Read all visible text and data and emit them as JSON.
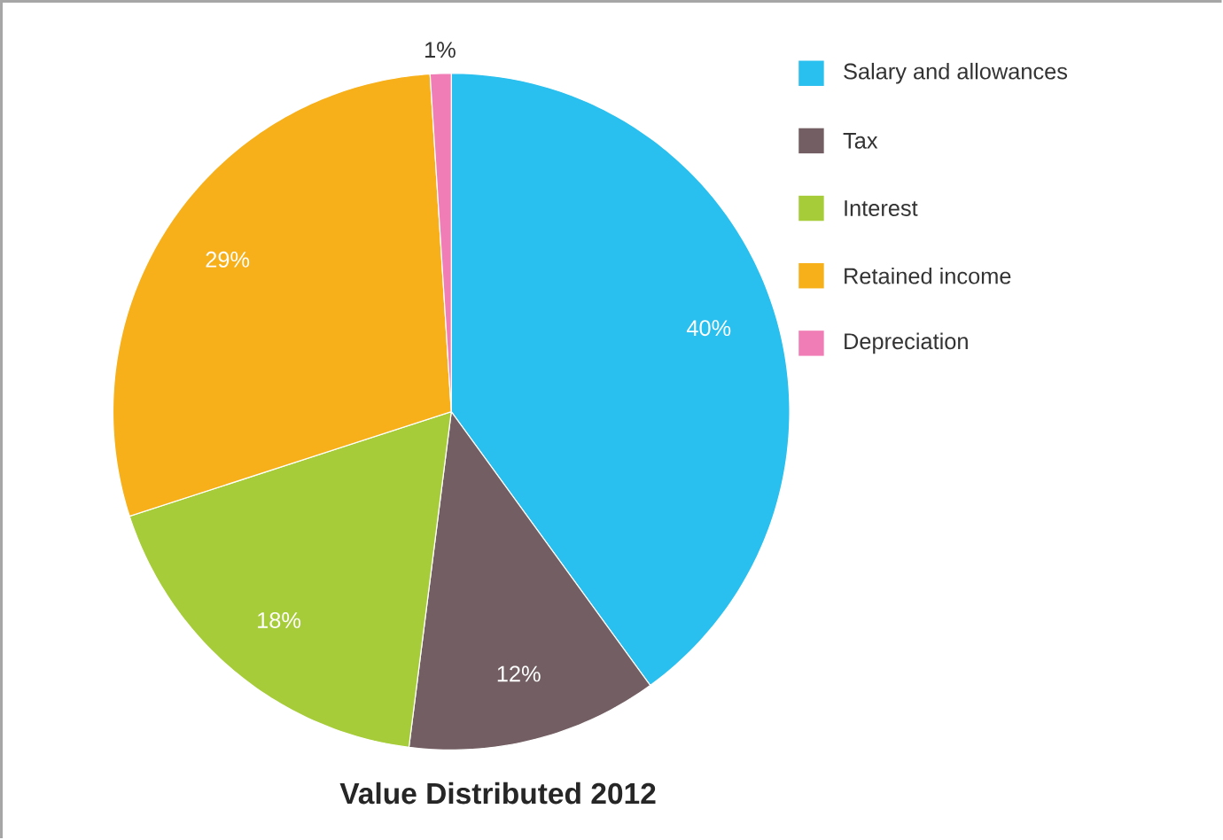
{
  "chart_data": {
    "type": "pie",
    "title": "Value Distributed 2012",
    "categories": [
      "Salary and allowances",
      "Tax",
      "Interest",
      "Retained income",
      "Depreciation"
    ],
    "values": [
      40,
      12,
      18,
      29,
      1
    ],
    "value_labels": [
      "40%",
      "12%",
      "18%",
      "29%",
      "1%"
    ],
    "colors": [
      "#29bfee",
      "#735f63",
      "#a6cc3a",
      "#f7b01a",
      "#f07db6"
    ],
    "legend": "top right"
  }
}
